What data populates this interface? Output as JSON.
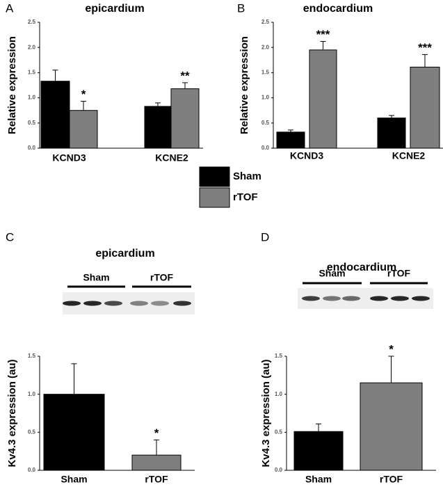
{
  "chart_data": [
    {
      "type": "bar",
      "panel": "A",
      "title": "epicardium",
      "ylabel": "Relative expression",
      "categories": [
        "KCND3",
        "KCNE2"
      ],
      "series": [
        {
          "name": "Sham",
          "color": "#000000",
          "values": [
            1.33,
            0.83
          ],
          "errors": [
            0.22,
            0.07
          ]
        },
        {
          "name": "rTOF",
          "color": "#7f7f7f",
          "values": [
            0.75,
            1.18
          ],
          "errors": [
            0.18,
            0.12
          ],
          "significance": [
            "*",
            "**"
          ]
        }
      ],
      "ylim": [
        0,
        2.5
      ],
      "yticks": [
        {
          "value": 0,
          "label": "0.0"
        },
        0.5,
        {
          "value": 1,
          "label": "1.0"
        },
        1.5,
        {
          "value": 2,
          "label": "2.0"
        },
        2.5
      ]
    },
    {
      "type": "bar",
      "panel": "B",
      "title": "endocardium",
      "ylabel": "Relative expression",
      "categories": [
        "KCND3",
        "KCNE2"
      ],
      "series": [
        {
          "color": "#000000",
          "values": [
            0.32,
            0.6
          ],
          "errors": [
            0.04,
            0.05
          ]
        },
        {
          "color": "#7f7f7f",
          "values": [
            1.95,
            1.61
          ],
          "errors": [
            0.17,
            0.25
          ],
          "significance": [
            "***",
            "***"
          ]
        }
      ],
      "ylim": [
        0,
        2.5
      ],
      "yticks": [
        {
          "value": 0,
          "label": "0.0"
        },
        0.5,
        {
          "value": 1,
          "label": "1.0"
        },
        1.5,
        {
          "value": 2,
          "label": "2.0"
        },
        2.5
      ]
    },
    {
      "type": "bar",
      "panel": "C",
      "title": "epicardium",
      "blot_labels": [
        "Sham",
        "rTOF"
      ],
      "ylabel": "Kv4.3 expression (au)",
      "categories": [
        "Sham",
        "rTOF"
      ],
      "values": [
        1.0,
        0.2
      ],
      "errors": [
        0.4,
        0.2
      ],
      "colors": [
        "#000000",
        "#7f7f7f"
      ],
      "significance": [
        null,
        "*"
      ],
      "ylim": [
        0,
        1.5
      ],
      "yticks": [
        {
          "value": 0,
          "label": "0.0"
        },
        0.5,
        {
          "value": 1,
          "label": "1.0"
        },
        1.5
      ]
    },
    {
      "type": "bar",
      "panel": "D",
      "title": "endocardium",
      "blot_labels": [
        "Sham",
        "rTOF"
      ],
      "ylabel": "Kv4.3 expression (au)",
      "categories": [
        "Sham",
        "rTOF"
      ],
      "values": [
        0.51,
        1.15
      ],
      "errors": [
        0.1,
        0.35
      ],
      "colors": [
        "#000000",
        "#7f7f7f"
      ],
      "significance": [
        null,
        "*"
      ],
      "ylim": [
        0,
        1.5
      ],
      "yticks": [
        {
          "value": 0,
          "label": "0.0"
        },
        0.5,
        {
          "value": 1,
          "label": "1.0"
        },
        1.5
      ]
    }
  ]
}
